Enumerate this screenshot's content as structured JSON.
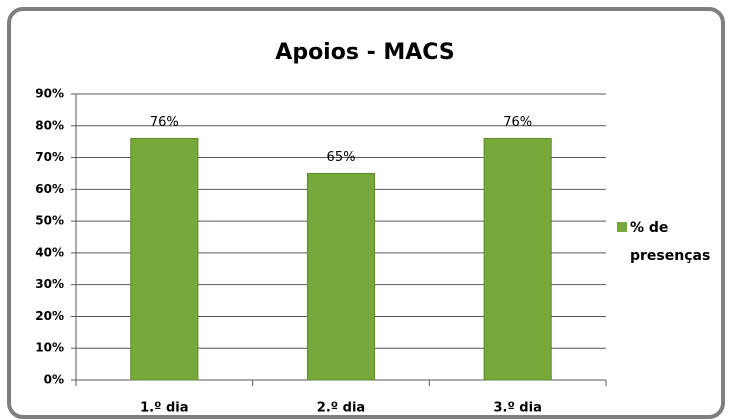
{
  "chart_data": {
    "type": "bar",
    "title": "Apoios - MACS",
    "categories": [
      "1.º dia",
      "2.º dia",
      "3.º dia"
    ],
    "series": [
      {
        "name": "% de presenças",
        "color": "#77a93a",
        "values": [
          76,
          65,
          76
        ],
        "value_labels": [
          "76%",
          "65%",
          "76%"
        ]
      }
    ],
    "ylim": [
      0,
      90
    ],
    "yticks": [
      {
        "value": 0,
        "label": "0%"
      },
      {
        "value": 10,
        "label": "10%"
      },
      {
        "value": 20,
        "label": "20%"
      },
      {
        "value": 30,
        "label": "30%"
      },
      {
        "value": 40,
        "label": "40%"
      },
      {
        "value": 50,
        "label": "50%"
      },
      {
        "value": 60,
        "label": "60%"
      },
      {
        "value": 70,
        "label": "70%"
      },
      {
        "value": 80,
        "label": "80%"
      },
      {
        "value": 90,
        "label": "90%"
      }
    ],
    "grid": true,
    "legend": "right"
  }
}
